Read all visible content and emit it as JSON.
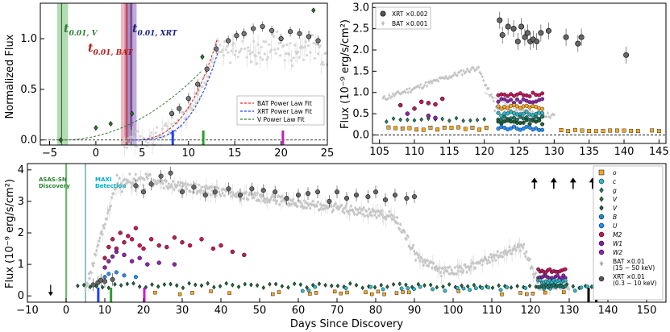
{
  "chart_data": [
    {
      "id": "panelA",
      "type": "line",
      "xlim": [
        -6,
        25
      ],
      "ylim": [
        -0.05,
        1.35
      ],
      "xticks": [
        "−5",
        "0",
        "5",
        "10",
        "15",
        "20",
        "25"
      ],
      "yticks": [
        "0.0",
        "0.5",
        "1.0"
      ],
      "ylabel": "Normalized Flux",
      "annotations": [
        {
          "name": "t-v-label",
          "main": "t",
          "sub": "0.01, V",
          "color": "#2e7d32"
        },
        {
          "name": "t-bat-label",
          "main": "t",
          "sub": "0.01, BAT",
          "color": "#b71c1c"
        },
        {
          "name": "t-xrt-label",
          "main": "t",
          "sub": "0.01, XRT",
          "color": "#1a237e"
        }
      ],
      "legend": [
        "BAT Power Law Fit",
        "XRT Power Law Fit",
        "V Power Law Fit"
      ],
      "legend_colors": [
        "#d32f2f",
        "#1e40ff",
        "#2e7d32"
      ],
      "bands": [
        {
          "x0": -4.2,
          "x1": -3.0,
          "color": "#66bb6a"
        },
        {
          "x0": 2.7,
          "x1": 4.0,
          "color": "#e57373"
        },
        {
          "x0": 3.1,
          "x1": 4.4,
          "color": "#7e57c2"
        }
      ],
      "vlines": [
        {
          "x": -3.7,
          "color": "#2e7d32"
        },
        {
          "x": 3.35,
          "color": "#b71c1c"
        },
        {
          "x": 3.8,
          "color": "#1a237e"
        }
      ],
      "ticks_marks": [
        {
          "x": 8.3,
          "color": "#1e40ff"
        },
        {
          "x": 11.6,
          "color": "#2e9c2e"
        },
        {
          "x": 20.2,
          "color": "#c020c0"
        }
      ],
      "v_points": [
        [
          -3.8,
          0.0
        ],
        [
          0.0,
          0.12
        ],
        [
          1.6,
          0.16
        ],
        [
          3.9,
          0.26
        ],
        [
          11.5,
          0.82
        ],
        [
          23.5,
          1.28
        ]
      ],
      "xrt_points": [
        [
          8.2,
          0.26
        ],
        [
          9.0,
          0.31
        ],
        [
          10.0,
          0.41
        ],
        [
          11.0,
          0.55
        ],
        [
          12.0,
          0.7
        ],
        [
          13.0,
          0.9
        ],
        [
          14.3,
          0.98
        ],
        [
          15.2,
          1.03
        ],
        [
          16.0,
          1.05
        ],
        [
          17.0,
          1.1
        ],
        [
          18.0,
          1.12
        ],
        [
          19.0,
          1.08
        ],
        [
          20.0,
          1.0
        ],
        [
          21.0,
          1.07
        ],
        [
          22.0,
          1.05
        ],
        [
          23.0,
          1.02
        ],
        [
          24.0,
          0.98
        ]
      ]
    },
    {
      "id": "panelB",
      "type": "scatter",
      "xlim": [
        104,
        146
      ],
      "ylim": [
        -0.2,
        3.1
      ],
      "xticks": [
        "105",
        "110",
        "115",
        "120",
        "125",
        "130",
        "135",
        "140",
        "145"
      ],
      "yticks": [
        "0.0",
        "0.5",
        "1.0",
        "1.5",
        "2.0",
        "2.5",
        "3.0"
      ],
      "ylabel": "Flux (10⁻⁹ erg/s/cm²)",
      "legend": [
        "XRT ×0.002",
        "BAT ×0.001"
      ],
      "xrt_points": [
        [
          122.2,
          2.7
        ],
        [
          122.6,
          2.35
        ],
        [
          123.4,
          2.55
        ],
        [
          124.2,
          2.5
        ],
        [
          124.8,
          2.2
        ],
        [
          125.3,
          2.55
        ],
        [
          125.8,
          2.3
        ],
        [
          126.2,
          2.4
        ],
        [
          126.6,
          2.2
        ],
        [
          127.0,
          2.25
        ],
        [
          127.5,
          2.2
        ],
        [
          128.1,
          2.4
        ],
        [
          129.2,
          2.45
        ],
        [
          131.7,
          2.3
        ],
        [
          133.4,
          2.15
        ],
        [
          133.9,
          2.3
        ],
        [
          140.3,
          1.88
        ]
      ]
    },
    {
      "id": "panelC",
      "type": "scatter",
      "xlim": [
        -10,
        155
      ],
      "ylim": [
        -0.2,
        4.2
      ],
      "xticks": [
        "−10",
        "0",
        "10",
        "20",
        "30",
        "40",
        "50",
        "60",
        "70",
        "80",
        "90",
        "100",
        "110",
        "120",
        "130",
        "140",
        "150"
      ],
      "yticks": [
        "0",
        "1",
        "2",
        "3",
        "4"
      ],
      "xlabel": "Days Since Discovery",
      "ylabel": "Flux (10⁻⁹ erg/s/cm²)",
      "annotations": [
        {
          "name": "asassn-label",
          "lines": [
            "ASAS-SN",
            "Discovery"
          ],
          "color": "#2e7d32"
        },
        {
          "name": "maxi-label",
          "lines": [
            "MAXI",
            "Detection"
          ],
          "color": "#00acc1"
        }
      ],
      "vlines": [
        {
          "x": 0,
          "color": "#2e9c2e"
        },
        {
          "x": 5,
          "color": "#33bbbb"
        }
      ],
      "ticks_marks": [
        {
          "x": 8.3,
          "color": "#1e40ff"
        },
        {
          "x": 11.6,
          "color": "#2e9c2e"
        },
        {
          "x": 20.2,
          "color": "#c020c0"
        },
        {
          "x": 135,
          "color": "#000000"
        },
        {
          "x": 137,
          "color": "#000000"
        }
      ],
      "up_arrows_x": [
        121,
        126,
        131,
        136
      ],
      "down_arrow_x": -4,
      "legend": [
        "o",
        "c",
        "g",
        "V",
        "V",
        "B",
        "U",
        "M2",
        "W1",
        "W2",
        "BAT ×0.01",
        "(15 − 50 keV)",
        "XRT ×0.01",
        "(0.3 − 10 keV)"
      ],
      "legend_colors": [
        "#f5a623",
        "#2bb8c8",
        "#1f7a6a",
        "#2e6e2e",
        "#1d5c3a",
        "#1e88c8",
        "#1e90ff",
        "#c2185b",
        "#7b1fa2",
        "#8e24aa",
        "#b0b0b0",
        "",
        "#555555",
        ""
      ],
      "xrt_points": [
        [
          7.0,
          0.35
        ],
        [
          8.2,
          0.42
        ],
        [
          9.0,
          0.5
        ],
        [
          10.0,
          0.46
        ],
        [
          12.0,
          0.52
        ],
        [
          18.0,
          3.5
        ],
        [
          20.0,
          3.3
        ],
        [
          22.0,
          3.55
        ],
        [
          24.5,
          3.8
        ],
        [
          27.0,
          3.9
        ],
        [
          30.0,
          3.3
        ],
        [
          33.0,
          3.45
        ],
        [
          36.0,
          3.2
        ],
        [
          38.5,
          3.3
        ],
        [
          42.0,
          3.4
        ],
        [
          45.0,
          3.2
        ],
        [
          48.0,
          3.4
        ],
        [
          51.0,
          3.35
        ],
        [
          54.0,
          3.3
        ],
        [
          57.0,
          3.1
        ],
        [
          60.0,
          3.2
        ],
        [
          62.5,
          3.25
        ],
        [
          65.0,
          3.3
        ],
        [
          68.0,
          3.0
        ],
        [
          70.0,
          3.3
        ],
        [
          72.5,
          3.1
        ],
        [
          75.0,
          3.2
        ],
        [
          78.0,
          3.15
        ],
        [
          80.0,
          3.3
        ],
        [
          82.5,
          3.05
        ],
        [
          85.0,
          3.2
        ],
        [
          88.0,
          3.1
        ],
        [
          90.0,
          3.15
        ]
      ]
    }
  ]
}
